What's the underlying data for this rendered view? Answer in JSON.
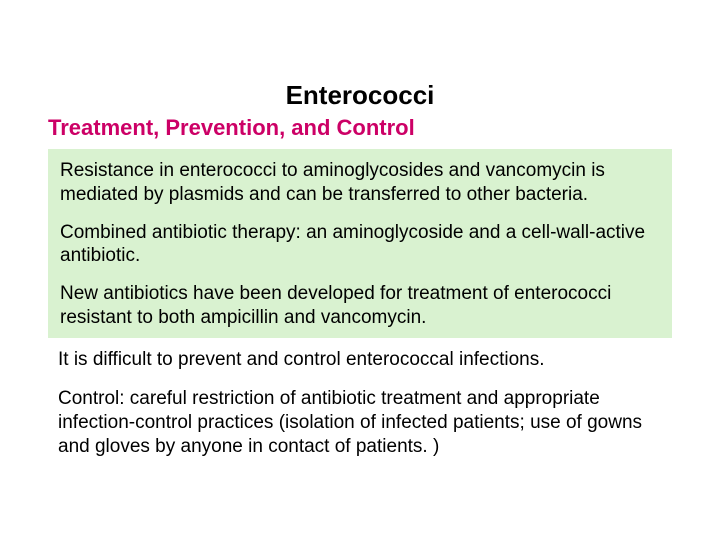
{
  "title": "Enterococci",
  "subtitle": "Treatment, Prevention, and Control",
  "highlight_box": {
    "background_color": "#d9f2d0",
    "paragraphs": [
      "Resistance in enterococci to aminoglycosides and vancomycin is mediated by plasmids and can be transferred to other bacteria.",
      "Combined antibiotic therapy: an aminoglycoside and a cell-wall-active antibiotic.",
      "New antibiotics have been developed for treatment of enterococci resistant to both ampicillin and vancomycin."
    ]
  },
  "lower_paragraphs": [
    "It is difficult to prevent and control enterococcal infections.",
    "Control: careful restriction of antibiotic treatment and appropriate infection-control practices (isolation of infected patients; use of gowns and gloves by anyone in contact of patients. )"
  ],
  "colors": {
    "title_color": "#000000",
    "subtitle_color": "#cc0066",
    "body_text_color": "#000000",
    "background": "#ffffff"
  },
  "typography": {
    "title_fontsize": 26,
    "subtitle_fontsize": 22,
    "body_fontsize": 19,
    "subtitle_font": "Comic Sans MS"
  }
}
